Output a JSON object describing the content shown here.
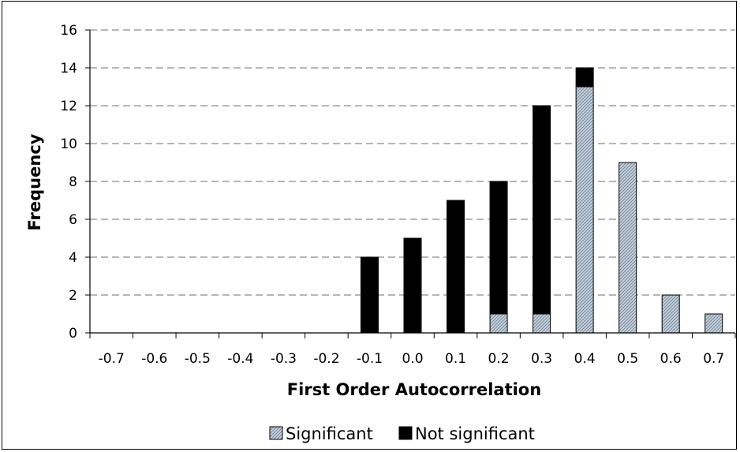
{
  "chart_data": {
    "type": "bar",
    "stacked": true,
    "xlabel": "First Order Autocorrelation",
    "ylabel": "Frequency",
    "ylim": [
      0,
      16
    ],
    "yticks": [
      "0",
      "2",
      "4",
      "6",
      "8",
      "10",
      "12",
      "14",
      "16"
    ],
    "categories": [
      "-0.7",
      "-0.6",
      "-0.5",
      "-0.4",
      "-0.3",
      "-0.2",
      "-0.1",
      "0.0",
      "0.1",
      "0.2",
      "0.3",
      "0.4",
      "0.5",
      "0.6",
      "0.7"
    ],
    "series": [
      {
        "name": "Significant",
        "color": "#b9c7d6",
        "pattern": "diagonal-hatch",
        "values": [
          0,
          0,
          0,
          0,
          0,
          0,
          0,
          0,
          0,
          1,
          1,
          13,
          9,
          2,
          1
        ]
      },
      {
        "name": "Not significant",
        "color": "#000000",
        "values": [
          0,
          0,
          0,
          0,
          0,
          0,
          4,
          5,
          7,
          7,
          11,
          1,
          0,
          0,
          0
        ]
      }
    ],
    "grid": "horizontal dashed",
    "legend_position": "bottom"
  }
}
